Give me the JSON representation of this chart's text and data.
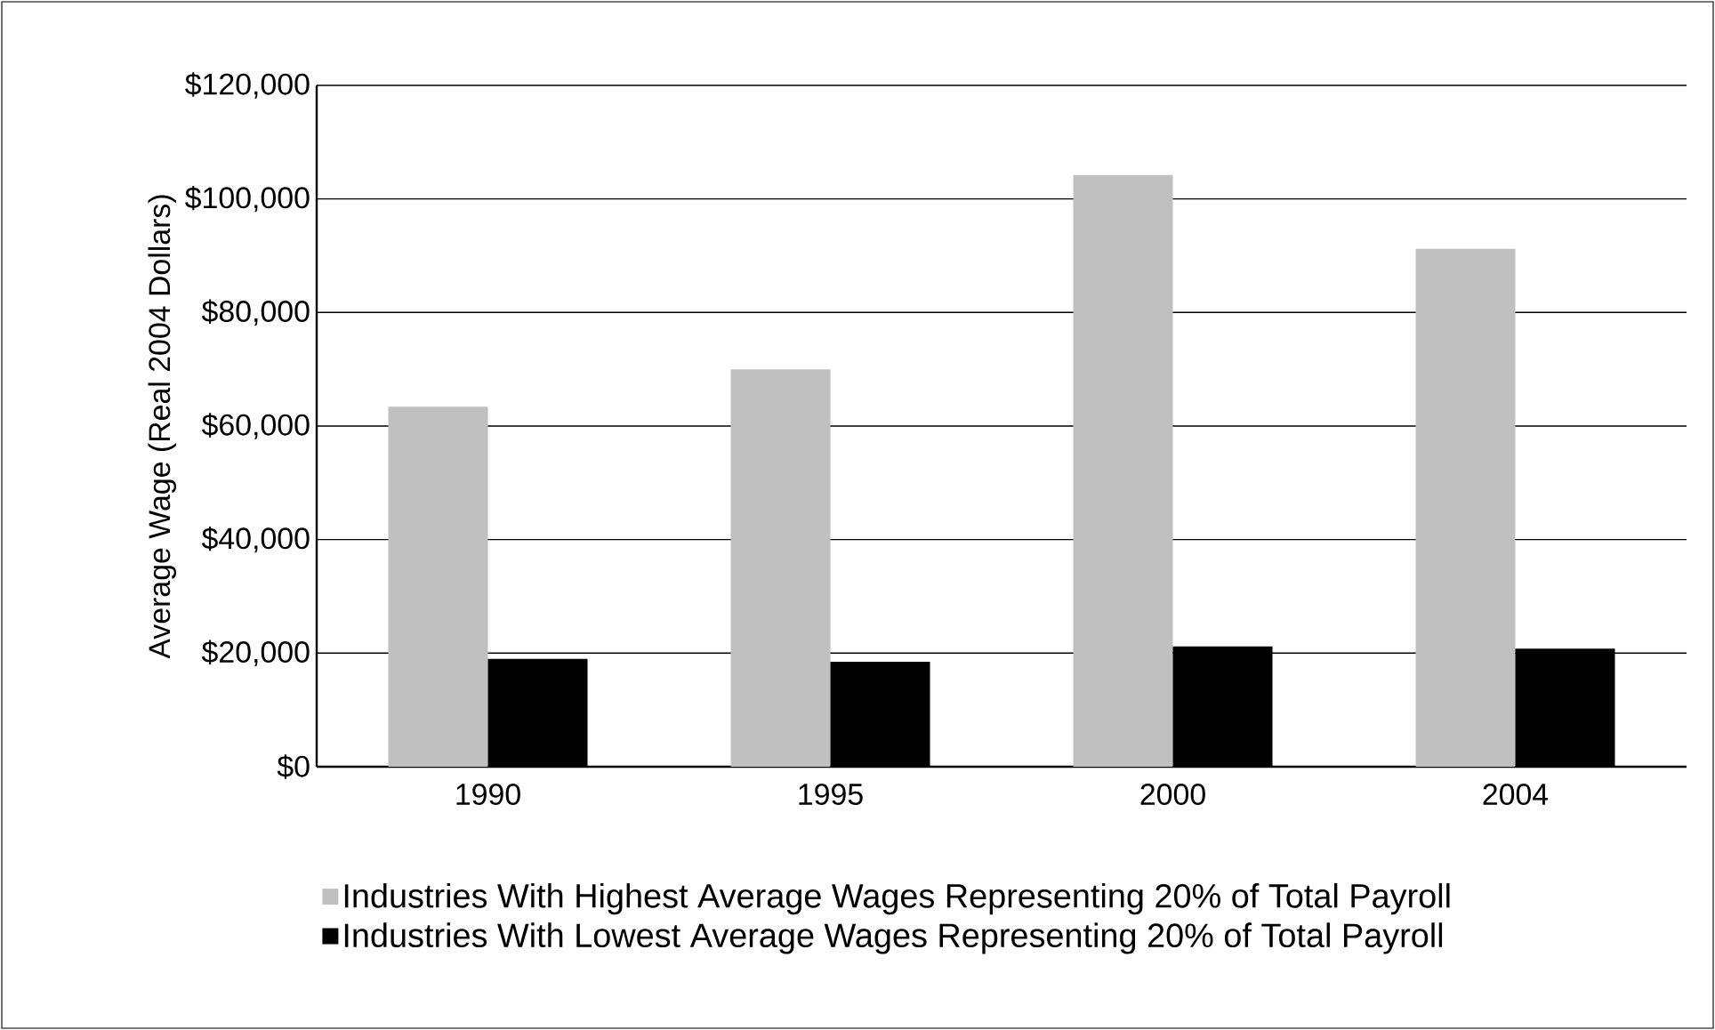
{
  "chart_data": {
    "type": "bar",
    "ylabel": "Average Wage (Real 2004 Dollars)",
    "categories": [
      "1990",
      "1995",
      "2000",
      "2004"
    ],
    "series": [
      {
        "name": "Industries With Highest Average Wages Representing 20% of Total Payroll",
        "color": "#c0c0c0",
        "values": [
          63400,
          70000,
          104200,
          91200
        ]
      },
      {
        "name": "Industries With Lowest Average Wages Representing 20% of Total Payroll",
        "color": "#000000",
        "values": [
          19000,
          18500,
          21200,
          20800
        ]
      }
    ],
    "ylim": [
      0,
      120000
    ],
    "yticks": [
      {
        "value": 0,
        "label": "$0"
      },
      {
        "value": 20000,
        "label": "$20,000"
      },
      {
        "value": 40000,
        "label": "$40,000"
      },
      {
        "value": 60000,
        "label": "$60,000"
      },
      {
        "value": 80000,
        "label": "$80,000"
      },
      {
        "value": 100000,
        "label": "$100,000"
      },
      {
        "value": 120000,
        "label": "$120,000"
      }
    ],
    "grid": "y",
    "legend": "bottom"
  }
}
